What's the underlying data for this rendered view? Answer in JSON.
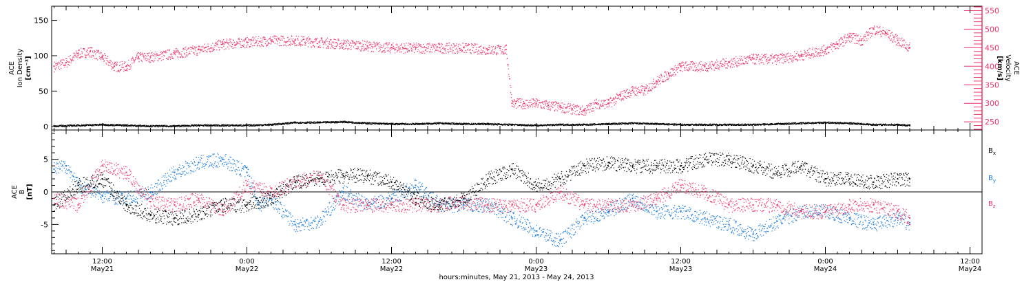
{
  "colors": {
    "black": "#000000",
    "pink": "#ee3366",
    "blue": "#1177dd"
  },
  "xaxis": {
    "caption": "hours:minutes, May 21, 2013 - May 24, 2013",
    "ticks": [
      {
        "t": 12,
        "time": "12:00",
        "date": "May21"
      },
      {
        "t": 24,
        "time": "0:00",
        "date": "May22"
      },
      {
        "t": 36,
        "time": "12:00",
        "date": "May22"
      },
      {
        "t": 48,
        "time": "0:00",
        "date": "May23"
      },
      {
        "t": 60,
        "time": "12:00",
        "date": "May23"
      },
      {
        "t": 72,
        "time": "0:00",
        "date": "May24"
      },
      {
        "t": 84,
        "time": "12:00",
        "date": "May24"
      }
    ]
  },
  "chart_data": [
    {
      "type": "scatter",
      "xlim": [
        7.8,
        85.0
      ],
      "left_axis": {
        "label_lines": [
          "ACE",
          "Ion Density",
          "[cm⁻³]"
        ],
        "ylim": [
          -5,
          170
        ],
        "ticks": [
          0,
          50,
          100,
          150
        ]
      },
      "right_axis": {
        "label_lines": [
          "ACE",
          "Velocity",
          "[km/s]"
        ],
        "ylim": [
          228,
          562
        ],
        "ticks": [
          250,
          300,
          350,
          400,
          450,
          500,
          550
        ],
        "color": "#ee3366"
      },
      "series": [
        {
          "color": "#000000",
          "axis": "left",
          "x": [
            8,
            10,
            12,
            14,
            16,
            18,
            20,
            22,
            24,
            26,
            28,
            30,
            32,
            34,
            36,
            38,
            40,
            42,
            44,
            46,
            48,
            50,
            52,
            54,
            56,
            58,
            60,
            62,
            64,
            66,
            68,
            70,
            72,
            74,
            76,
            78,
            79
          ],
          "y": [
            1,
            2,
            3,
            2,
            1,
            1,
            2,
            2,
            2,
            3,
            6,
            6,
            7,
            5,
            4,
            4,
            5,
            4,
            4,
            3,
            2,
            3,
            3,
            4,
            5,
            4,
            3,
            3,
            3,
            3,
            4,
            5,
            6,
            5,
            3,
            3,
            2
          ]
        },
        {
          "color": "#ee3366",
          "axis": "right",
          "x": [
            8,
            9,
            10,
            11,
            12,
            13,
            14,
            15,
            16,
            18,
            20,
            22,
            24,
            26,
            28,
            30,
            32,
            34,
            36,
            38,
            40,
            42,
            44,
            45.5,
            46,
            47,
            48,
            49,
            50,
            51,
            52,
            53,
            54,
            55,
            56,
            57,
            58,
            59,
            60,
            62,
            64,
            66,
            68,
            70,
            72,
            73,
            74,
            75,
            76,
            77,
            78,
            79
          ],
          "y": [
            400,
            410,
            435,
            440,
            425,
            400,
            400,
            425,
            425,
            435,
            445,
            460,
            465,
            470,
            470,
            465,
            460,
            455,
            450,
            450,
            450,
            450,
            445,
            445,
            300,
            300,
            300,
            295,
            290,
            285,
            280,
            300,
            300,
            320,
            335,
            335,
            360,
            380,
            400,
            400,
            410,
            420,
            420,
            430,
            445,
            460,
            480,
            470,
            500,
            490,
            470,
            450
          ]
        }
      ]
    },
    {
      "type": "scatter",
      "xlim": [
        7.8,
        85.0
      ],
      "left_axis": {
        "label_lines": [
          "ACE",
          "B",
          "[nT]"
        ],
        "ylim": [
          -9.5,
          9.5
        ],
        "ticks": [
          -5,
          0,
          5
        ]
      },
      "legend": [
        {
          "text": "B",
          "sub": "x",
          "color": "#000000"
        },
        {
          "text": "B",
          "sub": "y",
          "color": "#1177dd"
        },
        {
          "text": "B",
          "sub": "z",
          "color": "#ee3366"
        }
      ],
      "series": [
        {
          "name": "Bx",
          "color": "#000000",
          "x": [
            8,
            10,
            12,
            14,
            16,
            18,
            20,
            22,
            24,
            26,
            28,
            30,
            32,
            34,
            36,
            38,
            40,
            42,
            44,
            46,
            48,
            50,
            52,
            54,
            56,
            58,
            60,
            62,
            64,
            66,
            68,
            70,
            72,
            74,
            76,
            78,
            79
          ],
          "y": [
            -2,
            1,
            2,
            -2,
            -3.5,
            -4,
            -3.5,
            -2,
            -2,
            -1,
            1.5,
            2,
            2.5,
            2.5,
            1.5,
            -1,
            -2,
            -1,
            2,
            3.5,
            1,
            2,
            4,
            4.5,
            4,
            4,
            4,
            5,
            5,
            4,
            3,
            4,
            2,
            2,
            1.5,
            2,
            2
          ]
        },
        {
          "name": "By",
          "color": "#1177dd",
          "x": [
            8,
            9,
            10,
            12,
            14,
            16,
            18,
            20,
            22,
            24,
            25,
            26,
            28,
            30,
            32,
            34,
            36,
            38,
            40,
            42,
            44,
            46,
            48,
            50,
            52,
            54,
            56,
            58,
            60,
            62,
            64,
            66,
            68,
            70,
            72,
            74,
            76,
            78,
            79
          ],
          "y": [
            3.5,
            4,
            1,
            -0.5,
            -1,
            0,
            3,
            4.5,
            5,
            3,
            -2,
            -1,
            -5,
            -4.5,
            0,
            -2,
            -1,
            1,
            -2,
            -2,
            -2,
            -4,
            -6,
            -7.5,
            -4,
            -3,
            -1,
            -3,
            -3,
            -4,
            -5,
            -6.5,
            -4.5,
            -3,
            -3,
            -4,
            -5,
            -4,
            -5
          ]
        },
        {
          "name": "Bz",
          "color": "#ee3366",
          "x": [
            8,
            10,
            12,
            14,
            16,
            18,
            20,
            22,
            24,
            26,
            28,
            30,
            32,
            34,
            36,
            38,
            40,
            42,
            44,
            46,
            48,
            50,
            52,
            54,
            56,
            58,
            60,
            62,
            64,
            66,
            68,
            70,
            72,
            74,
            76,
            78,
            79
          ],
          "y": [
            -1,
            -2,
            4,
            3,
            -1.5,
            -2,
            -1,
            -3,
            1,
            0,
            1.5,
            2.5,
            -2,
            -2,
            -2,
            -2,
            -2,
            -1.5,
            -2,
            -2,
            -2,
            0,
            -2,
            -2,
            -2,
            -1,
            1,
            0,
            -2,
            -2,
            -2,
            -3,
            -3,
            -2,
            -2,
            -3,
            -4
          ]
        }
      ]
    }
  ]
}
